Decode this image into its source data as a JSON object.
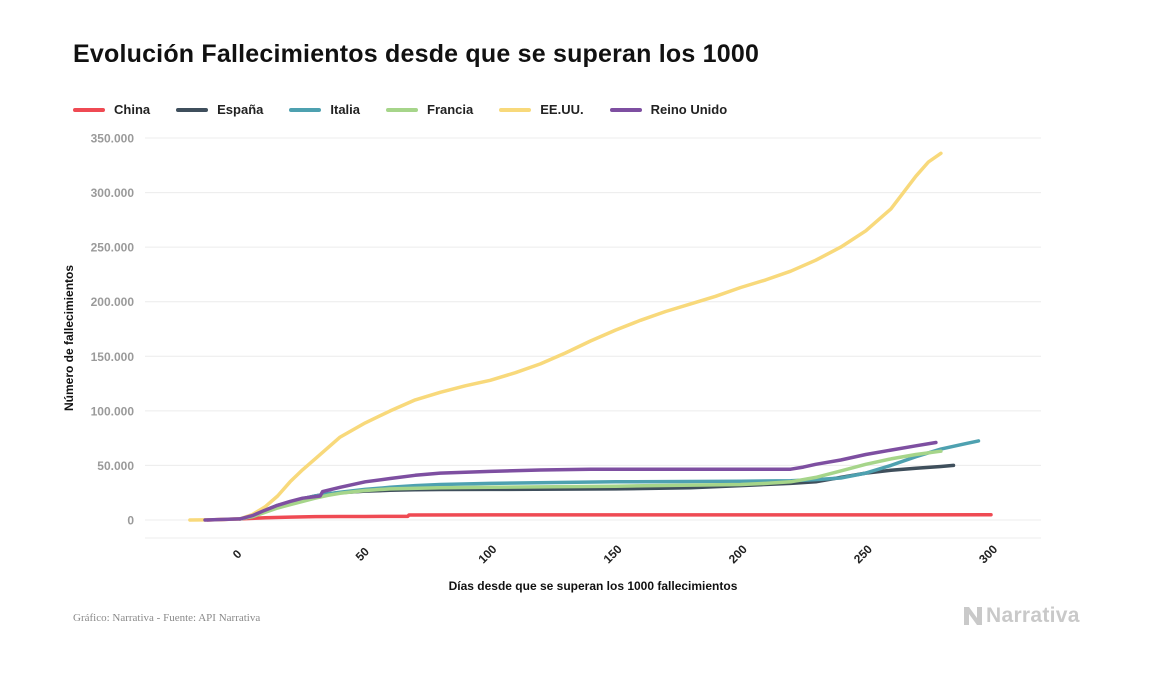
{
  "title": "Evolución Fallecimientos desde que se superan los 1000",
  "source": "Gráfico: Narrativa - Fuente: API Narrativa",
  "logo": {
    "text": "Narrativa",
    "icon": "narrativa-logo-icon"
  },
  "chart_data": {
    "type": "line",
    "xlabel": "Días desde que se superan los 1000 fallecimientos",
    "ylabel": "Número de fallecimientos",
    "xlim": [
      -38,
      320
    ],
    "ylim": [
      -15000,
      350000
    ],
    "xticks": [
      0,
      50,
      100,
      150,
      200,
      250,
      300
    ],
    "xtick_labels": [
      "0",
      "50",
      "100",
      "150",
      "200",
      "250",
      "300"
    ],
    "yticks": [
      0,
      50000,
      100000,
      150000,
      200000,
      250000,
      300000,
      350000
    ],
    "ytick_labels": [
      "0",
      "50.000",
      "100.000",
      "150.000",
      "200.000",
      "250.000",
      "300.000",
      "350.000"
    ],
    "grid": "horizontal",
    "legend_position": "top-left",
    "series": [
      {
        "name": "China",
        "color": "#ef4a53",
        "x": [
          -13,
          0,
          10,
          20,
          30,
          40,
          50,
          60,
          67,
          67.5,
          100,
          150,
          200,
          250,
          300
        ],
        "y": [
          0,
          1000,
          2000,
          2700,
          3100,
          3200,
          3250,
          3300,
          3300,
          4600,
          4630,
          4640,
          4650,
          4700,
          4740
        ]
      },
      {
        "name": "España",
        "color": "#3f4f5c",
        "x": [
          0,
          5,
          10,
          15,
          20,
          25,
          30,
          35,
          40,
          50,
          60,
          70,
          80,
          100,
          150,
          180,
          200,
          220,
          230,
          240,
          250,
          260,
          270,
          280,
          285
        ],
        "y": [
          1000,
          3000,
          7500,
          11700,
          16000,
          19500,
          22000,
          24000,
          25000,
          26500,
          27200,
          27700,
          27900,
          28000,
          28500,
          29500,
          31500,
          33500,
          35000,
          39000,
          43000,
          45500,
          47500,
          49000,
          50000
        ]
      },
      {
        "name": "Italia",
        "color": "#4ea1b0",
        "x": [
          0,
          5,
          10,
          15,
          20,
          25,
          30,
          35,
          40,
          50,
          60,
          70,
          80,
          100,
          150,
          200,
          220,
          230,
          240,
          250,
          260,
          270,
          280,
          290,
          295
        ],
        "y": [
          1000,
          4000,
          9000,
          13500,
          16500,
          19500,
          22000,
          24000,
          25500,
          28000,
          30000,
          31500,
          32500,
          33500,
          35000,
          35500,
          36000,
          37000,
          38500,
          43000,
          50000,
          58000,
          65000,
          70000,
          72500
        ]
      },
      {
        "name": "Francia",
        "color": "#a6d58a",
        "x": [
          0,
          5,
          10,
          15,
          20,
          25,
          30,
          35,
          40,
          50,
          60,
          80,
          100,
          150,
          200,
          210,
          220,
          230,
          240,
          250,
          260,
          270,
          280
        ],
        "y": [
          1000,
          3000,
          7000,
          11000,
          14000,
          17000,
          20000,
          22500,
          24500,
          27000,
          28500,
          29500,
          30000,
          31000,
          32500,
          33500,
          35000,
          39000,
          45000,
          51000,
          56000,
          60000,
          63000
        ]
      },
      {
        "name": "EE.UU.",
        "color": "#f8d97b",
        "x": [
          -20,
          -15,
          -10,
          -5,
          0,
          5,
          10,
          15,
          20,
          25,
          30,
          40,
          50,
          60,
          70,
          80,
          90,
          100,
          110,
          120,
          130,
          140,
          150,
          160,
          170,
          180,
          190,
          200,
          210,
          220,
          230,
          240,
          250,
          260,
          265,
          270,
          275,
          280
        ],
        "y": [
          0,
          100,
          300,
          600,
          1000,
          5000,
          12000,
          22000,
          35000,
          46000,
          56000,
          76000,
          89000,
          100000,
          110000,
          117000,
          123000,
          128000,
          135000,
          143000,
          153000,
          164000,
          174000,
          183000,
          191000,
          198000,
          205000,
          213000,
          220000,
          228000,
          238000,
          250000,
          265000,
          285000,
          300000,
          315000,
          328000,
          336000
        ]
      },
      {
        "name": "Reino Unido",
        "color": "#7e4fa1",
        "x": [
          -14,
          0,
          5,
          10,
          15,
          20,
          25,
          32,
          33,
          40,
          50,
          60,
          70,
          80,
          100,
          120,
          140,
          160,
          180,
          200,
          220,
          225,
          230,
          240,
          250,
          260,
          270,
          278
        ],
        "y": [
          0,
          1000,
          4000,
          9000,
          13500,
          17000,
          20000,
          22000,
          26000,
          30000,
          35000,
          38000,
          41000,
          43000,
          44500,
          45800,
          46500,
          46500,
          46500,
          46500,
          46500,
          48500,
          51000,
          55000,
          60000,
          64000,
          68000,
          71000
        ]
      }
    ]
  }
}
